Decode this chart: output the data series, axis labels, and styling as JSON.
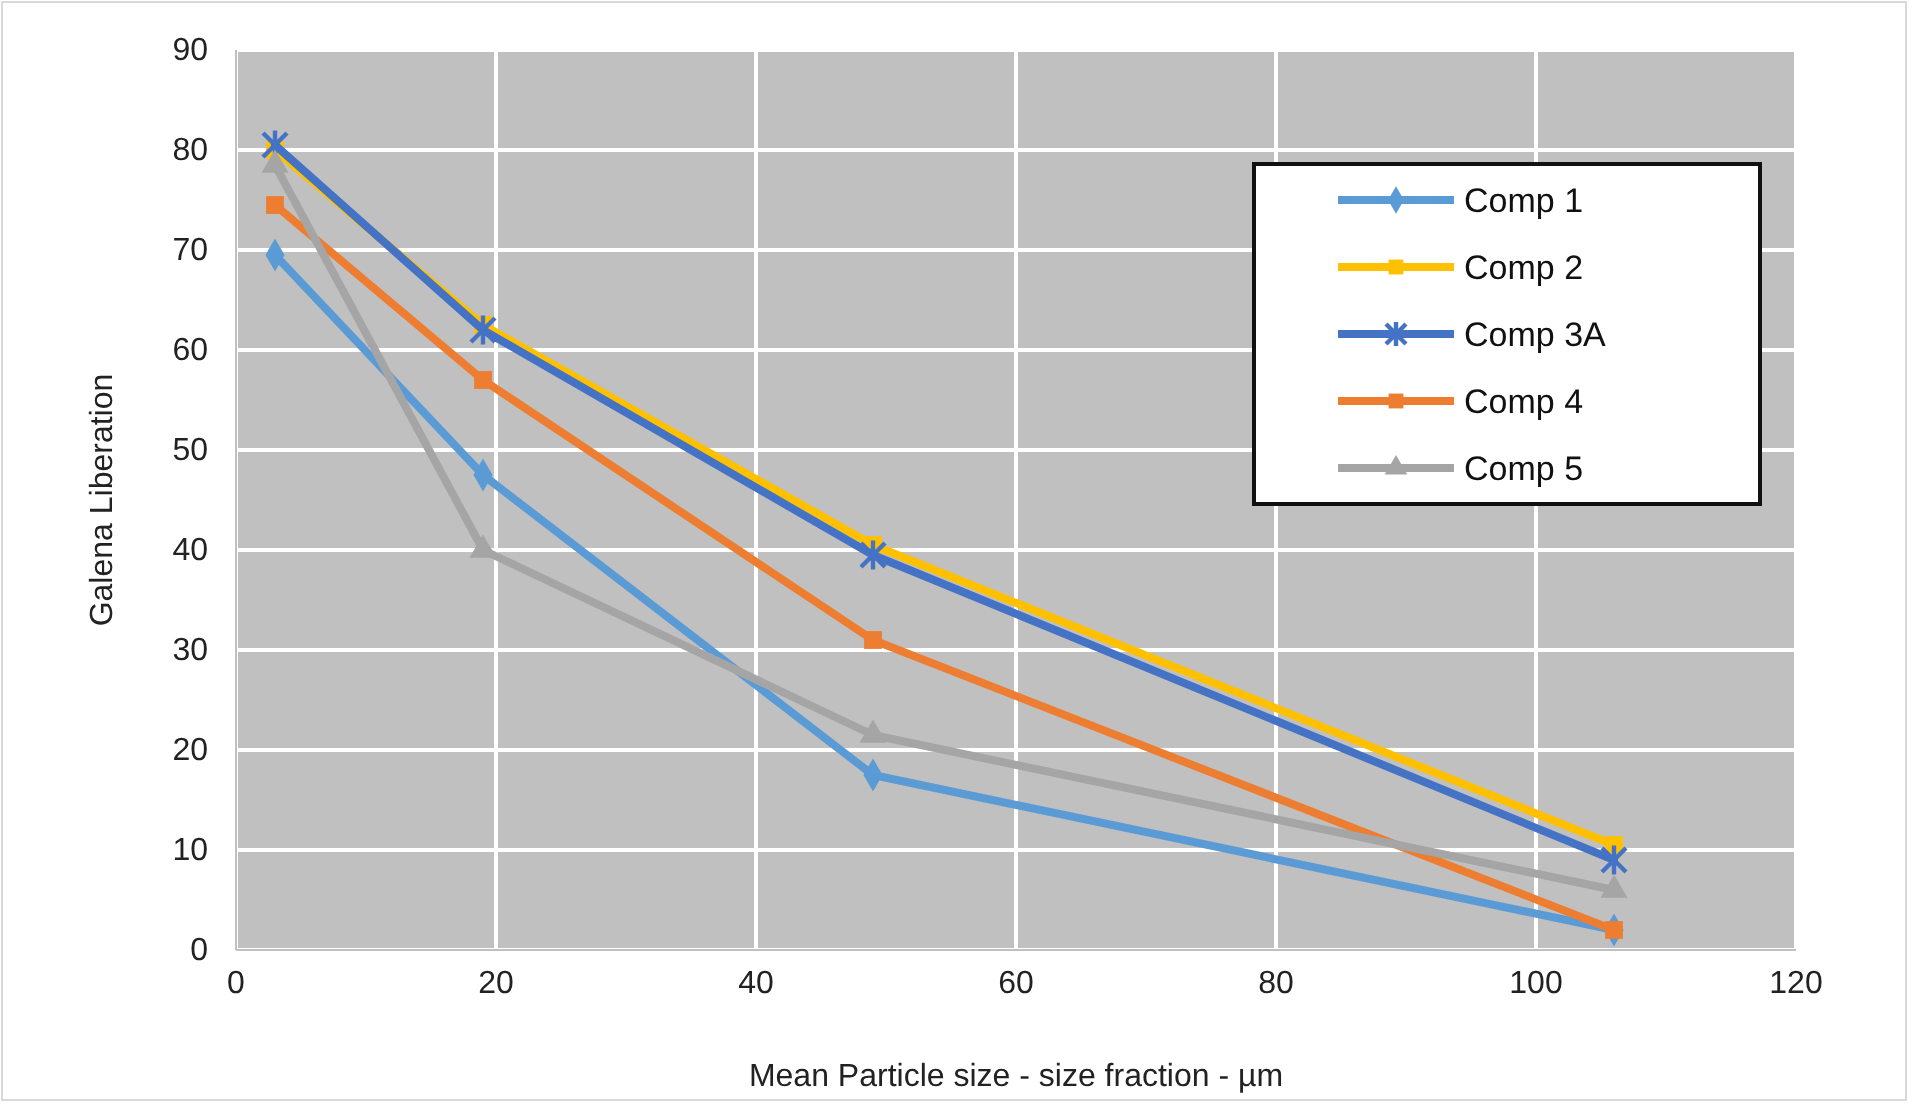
{
  "chart_data": {
    "type": "line",
    "xlabel": "Mean Particle size - size fraction - µm",
    "ylabel": "Galena Liberation",
    "x": [
      3,
      19,
      49,
      106
    ],
    "xlim": [
      0,
      120
    ],
    "xticks": [
      0,
      20,
      40,
      60,
      80,
      100,
      120
    ],
    "ylim": [
      0,
      90
    ],
    "yticks": [
      0,
      10,
      20,
      30,
      40,
      50,
      60,
      70,
      80,
      90
    ],
    "grid": true,
    "legend": "top right",
    "line_style": "solid",
    "series": [
      {
        "name": "Comp 1",
        "color": "#5b9bd5",
        "marker": "diamond",
        "values": [
          69.5,
          47.5,
          17.5,
          2
        ]
      },
      {
        "name": "Comp 2",
        "color": "#ffc000",
        "marker": "square",
        "values": [
          80,
          62.5,
          40.5,
          10.5
        ]
      },
      {
        "name": "Comp 3A",
        "color": "#4472c4",
        "marker": "cross",
        "values": [
          80.5,
          62,
          39.5,
          9
        ]
      },
      {
        "name": "Comp 4",
        "color": "#ed7d31",
        "marker": "square",
        "values": [
          74.5,
          57,
          31,
          2
        ]
      },
      {
        "name": "Comp 5",
        "color": "#a5a5a5",
        "marker": "triangle",
        "values": [
          78.5,
          40,
          21.5,
          6
        ]
      }
    ]
  }
}
